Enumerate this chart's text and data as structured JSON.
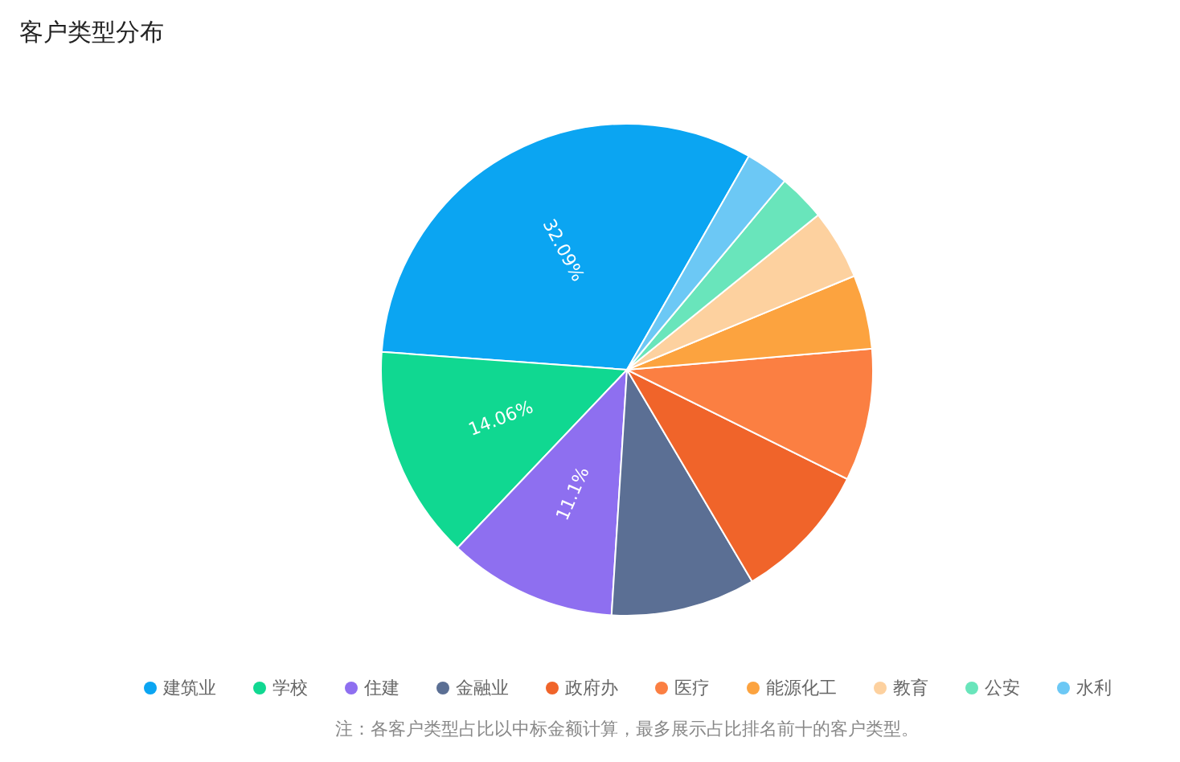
{
  "chart_data": {
    "type": "pie",
    "title": "客户类型分布",
    "categories": [
      "建筑业",
      "学校",
      "住建",
      "金融业",
      "政府办",
      "医疗",
      "能源化工",
      "教育",
      "公安",
      "水利"
    ],
    "values": [
      32.09,
      14.06,
      11.1,
      9.5,
      9.17,
      8.7,
      4.86,
      4.6,
      3.1,
      2.82
    ],
    "colors": [
      "#0ba5f2",
      "#10d891",
      "#8e6ff0",
      "#5b6f94",
      "#f0642a",
      "#fb7f42",
      "#fca33f",
      "#fdd19f",
      "#69e5bb",
      "#6cc8f5"
    ],
    "value_labels": [
      "32.09%",
      "14.06%",
      "11.1%",
      null,
      null,
      null,
      null,
      null,
      null,
      null
    ],
    "legend": "bottom",
    "annotations": [
      "注：各客户类型占比以中标金额计算，最多展示占比排名前十的客户类型。"
    ]
  }
}
